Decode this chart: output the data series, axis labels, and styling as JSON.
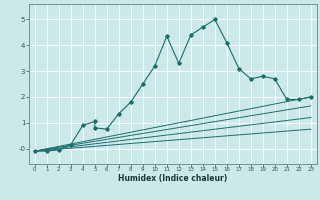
{
  "xlabel": "Humidex (Indice chaleur)",
  "bg_color": "#cce8e8",
  "grid_color": "#b0d8d8",
  "line_color": "#1a6e6a",
  "xlim": [
    -0.5,
    23.5
  ],
  "ylim": [
    -0.6,
    5.6
  ],
  "xticks": [
    0,
    1,
    2,
    3,
    4,
    5,
    6,
    7,
    8,
    9,
    10,
    11,
    12,
    13,
    14,
    15,
    16,
    17,
    18,
    19,
    20,
    21,
    22,
    23
  ],
  "yticks": [
    0,
    1,
    2,
    3,
    4,
    5
  ],
  "ytick_labels": [
    "-0",
    "1",
    "2",
    "3",
    "4",
    "5"
  ],
  "series_main": {
    "x": [
      0,
      1,
      2,
      3,
      4,
      5,
      5,
      6,
      7,
      8,
      9,
      10,
      11,
      12,
      13,
      14,
      15,
      16,
      17,
      18,
      19,
      20,
      21,
      22,
      23
    ],
    "y": [
      -0.1,
      -0.1,
      -0.05,
      0.15,
      0.9,
      1.05,
      0.8,
      0.75,
      1.35,
      1.8,
      2.5,
      3.2,
      4.35,
      3.3,
      4.4,
      4.7,
      5.0,
      4.1,
      3.1,
      2.7,
      2.8,
      2.7,
      1.9,
      1.9,
      2.0
    ]
  },
  "series_line1": {
    "x": [
      0,
      23
    ],
    "y": [
      -0.1,
      2.0
    ]
  },
  "series_line2": {
    "x": [
      0,
      23
    ],
    "y": [
      -0.1,
      1.65
    ]
  },
  "series_line3": {
    "x": [
      0,
      23
    ],
    "y": [
      -0.1,
      1.2
    ]
  },
  "series_line4": {
    "x": [
      0,
      23
    ],
    "y": [
      -0.1,
      0.75
    ]
  }
}
